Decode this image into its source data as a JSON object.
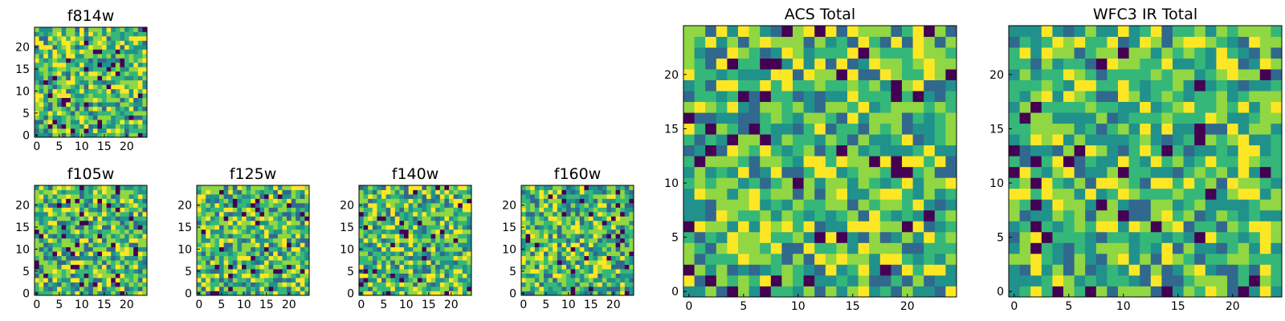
{
  "chart_data": [
    {
      "type": "heatmap",
      "title": "f814w",
      "grid": [
        25,
        25
      ],
      "seed": 11,
      "colormap": [
        "#440154",
        "#31688e",
        "#21918c",
        "#35b779",
        "#90d743",
        "#fde725"
      ],
      "xticks": [
        0,
        5,
        10,
        15,
        20
      ],
      "yticks": [
        0,
        5,
        10,
        15,
        20
      ],
      "xlim": [
        -0.5,
        24.5
      ],
      "ylim": [
        -0.5,
        24.5
      ]
    },
    {
      "type": "heatmap",
      "title": "f105w",
      "grid": [
        25,
        25
      ],
      "seed": 23,
      "xticks": [
        0,
        5,
        10,
        15,
        20
      ],
      "yticks": [
        0,
        5,
        10,
        15,
        20
      ],
      "xlim": [
        -0.5,
        24.5
      ],
      "ylim": [
        -0.5,
        24.5
      ]
    },
    {
      "type": "heatmap",
      "title": "f125w",
      "grid": [
        25,
        25
      ],
      "seed": 37,
      "xticks": [
        0,
        5,
        10,
        15,
        20
      ],
      "yticks": [
        0,
        5,
        10,
        15,
        20
      ],
      "xlim": [
        -0.5,
        24.5
      ],
      "ylim": [
        -0.5,
        24.5
      ]
    },
    {
      "type": "heatmap",
      "title": "f140w",
      "grid": [
        25,
        25
      ],
      "seed": 41,
      "xticks": [
        0,
        5,
        10,
        15,
        20
      ],
      "yticks": [
        0,
        5,
        10,
        15,
        20
      ],
      "xlim": [
        -0.5,
        24.5
      ],
      "ylim": [
        -0.5,
        24.5
      ]
    },
    {
      "type": "heatmap",
      "title": "f160w",
      "grid": [
        25,
        25
      ],
      "seed": 53,
      "xticks": [
        0,
        5,
        10,
        15,
        20
      ],
      "yticks": [
        0,
        5,
        10,
        15,
        20
      ],
      "xlim": [
        -0.5,
        24.5
      ],
      "ylim": [
        -0.5,
        24.5
      ]
    },
    {
      "type": "heatmap",
      "title": "ACS Total",
      "grid": [
        25,
        25
      ],
      "seed": 67,
      "xticks": [
        0,
        5,
        10,
        15,
        20
      ],
      "yticks": [
        0,
        5,
        10,
        15,
        20
      ],
      "xlim": [
        -0.5,
        24.5
      ],
      "ylim": [
        -0.5,
        24.5
      ]
    },
    {
      "type": "heatmap",
      "title": "WFC3 IR Total",
      "grid": [
        25,
        25
      ],
      "seed": 79,
      "xticks": [
        0,
        5,
        10,
        15,
        20
      ],
      "yticks": [
        0,
        5,
        10,
        15,
        20
      ],
      "xlim": [
        -0.5,
        24.5
      ],
      "ylim": [
        -0.5,
        24.5
      ]
    }
  ]
}
